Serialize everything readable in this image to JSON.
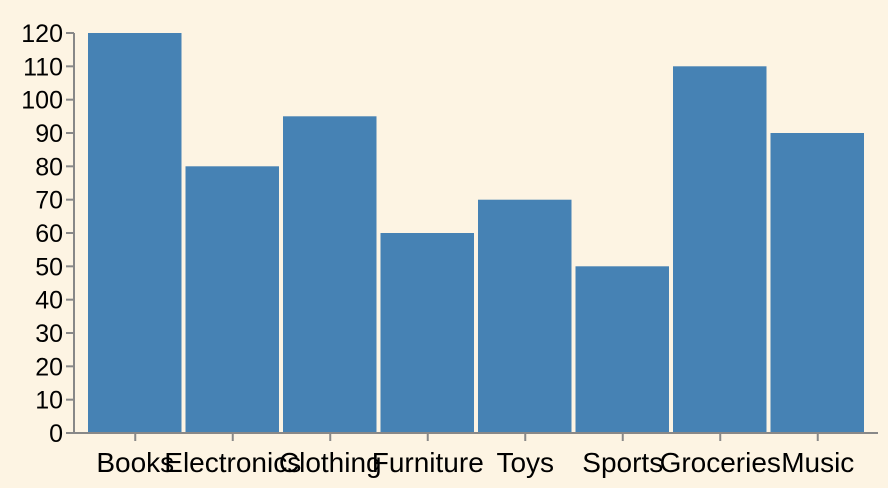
{
  "chart_data": {
    "type": "bar",
    "categories": [
      "Books",
      "Electronics",
      "Clothing",
      "Furniture",
      "Toys",
      "Sports",
      "Groceries",
      "Music"
    ],
    "values": [
      120,
      80,
      95,
      60,
      70,
      50,
      110,
      90
    ],
    "ylim": [
      0,
      120
    ],
    "yticks": [
      0,
      10,
      20,
      30,
      40,
      50,
      60,
      70,
      80,
      90,
      100,
      110,
      120
    ],
    "title": "",
    "xlabel": "",
    "ylabel": "",
    "grid": false,
    "colors": {
      "background": "#fdf4e3",
      "bar": "#4682b4",
      "axis": "#888888",
      "text": "#000000"
    }
  }
}
